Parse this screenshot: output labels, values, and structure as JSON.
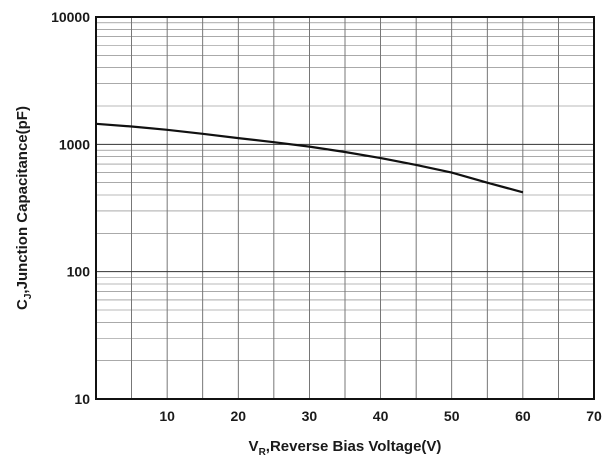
{
  "chart_data": {
    "type": "line",
    "xlabel": {
      "main": "V",
      "sub": "R",
      "rest": ",Reverse Bias Voltage(V)"
    },
    "ylabel": {
      "main": "C",
      "sub": "J",
      "rest": ",Junction Capacitance(pF)"
    },
    "xlim": [
      0,
      70
    ],
    "ylim": [
      10,
      10000
    ],
    "y_scale": "log",
    "grid": true,
    "x_ticks": [
      10,
      20,
      30,
      40,
      50,
      60,
      70
    ],
    "x_tick_labels": [
      "10",
      "20",
      "30",
      "40",
      "50",
      "60",
      "70"
    ],
    "y_ticks": [
      10,
      100,
      1000,
      10000
    ],
    "y_tick_labels": [
      "10",
      "100",
      "1000",
      "10000"
    ],
    "series": [
      {
        "color": "#111111",
        "x": [
          0,
          5,
          10,
          15,
          20,
          25,
          30,
          35,
          40,
          45,
          50,
          55,
          60
        ],
        "y": [
          1450,
          1380,
          1300,
          1210,
          1120,
          1040,
          960,
          870,
          780,
          690,
          600,
          500,
          420
        ]
      }
    ]
  }
}
